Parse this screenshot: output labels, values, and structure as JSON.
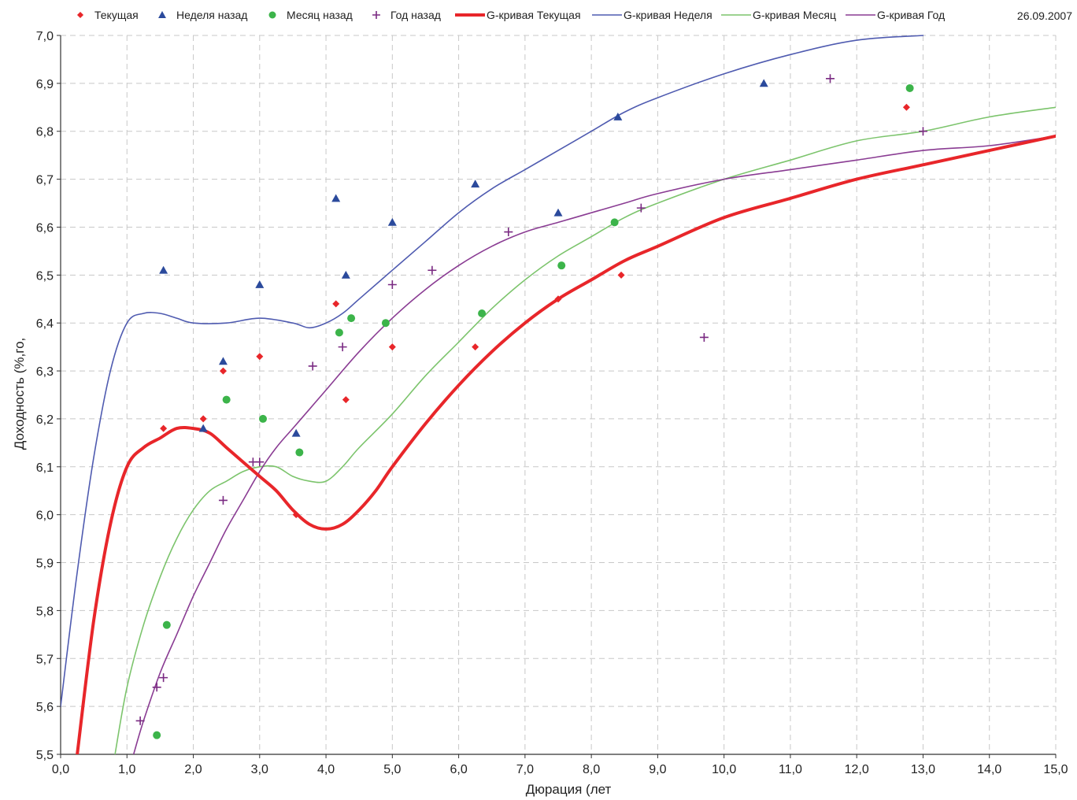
{
  "chart_data": {
    "type": "scatter",
    "date": "26.09.2007",
    "xlabel": "Дюрация (лет",
    "ylabel": "Доходность (%,го,",
    "xlim": [
      0,
      15
    ],
    "ylim": [
      5.5,
      7.0
    ],
    "x_ticks": [
      0,
      1,
      2,
      3,
      4,
      5,
      6,
      7,
      8,
      9,
      10,
      11,
      12,
      13,
      14,
      15
    ],
    "x_tick_labels": [
      "0,0",
      "1,0",
      "2,0",
      "3,0",
      "4,0",
      "5,0",
      "6,0",
      "7,0",
      "8,0",
      "9,0",
      "10,0",
      "11,0",
      "12,0",
      "13,0",
      "14,0",
      "15,0"
    ],
    "y_ticks": [
      5.5,
      5.6,
      5.7,
      5.8,
      5.9,
      6.0,
      6.1,
      6.2,
      6.3,
      6.4,
      6.5,
      6.6,
      6.7,
      6.8,
      6.9,
      7.0
    ],
    "y_tick_labels": [
      "5,5",
      "5,6",
      "5,7",
      "5,8",
      "5,9",
      "6,0",
      "6,1",
      "6,2",
      "6,3",
      "6,4",
      "6,5",
      "6,6",
      "6,7",
      "6,8",
      "6,9",
      "7,0"
    ],
    "grid": true,
    "legend_position": "top",
    "scatter_series": [
      {
        "name": "Текущая",
        "marker": "diamond",
        "color": "#e8262a",
        "points": [
          [
            1.55,
            6.18
          ],
          [
            2.15,
            6.2
          ],
          [
            2.45,
            6.3
          ],
          [
            3.0,
            6.33
          ],
          [
            3.55,
            6.0
          ],
          [
            4.15,
            6.44
          ],
          [
            4.3,
            6.24
          ],
          [
            5.0,
            6.35
          ],
          [
            6.25,
            6.35
          ],
          [
            7.5,
            6.45
          ],
          [
            8.45,
            6.5
          ],
          [
            12.75,
            6.85
          ]
        ]
      },
      {
        "name": "Неделя назад",
        "marker": "triangle",
        "color": "#2b4a9c",
        "points": [
          [
            1.55,
            6.51
          ],
          [
            2.15,
            6.18
          ],
          [
            2.45,
            6.32
          ],
          [
            3.0,
            6.48
          ],
          [
            3.55,
            6.17
          ],
          [
            4.15,
            6.66
          ],
          [
            4.3,
            6.5
          ],
          [
            5.0,
            6.61
          ],
          [
            6.25,
            6.69
          ],
          [
            7.5,
            6.63
          ],
          [
            8.4,
            6.83
          ],
          [
            10.6,
            6.9
          ]
        ]
      },
      {
        "name": "Месяц назад",
        "marker": "circle",
        "color": "#3cb44a",
        "points": [
          [
            1.45,
            5.54
          ],
          [
            1.6,
            5.77
          ],
          [
            2.5,
            6.24
          ],
          [
            3.05,
            6.2
          ],
          [
            3.6,
            6.13
          ],
          [
            4.2,
            6.38
          ],
          [
            4.38,
            6.41
          ],
          [
            4.9,
            6.4
          ],
          [
            6.35,
            6.42
          ],
          [
            7.55,
            6.52
          ],
          [
            8.35,
            6.61
          ],
          [
            12.8,
            6.89
          ]
        ]
      },
      {
        "name": "Год назад",
        "marker": "plus",
        "color": "#7a2a82",
        "points": [
          [
            1.2,
            5.57
          ],
          [
            1.45,
            5.64
          ],
          [
            1.55,
            5.66
          ],
          [
            2.45,
            6.03
          ],
          [
            2.9,
            6.11
          ],
          [
            3.0,
            6.11
          ],
          [
            3.8,
            6.31
          ],
          [
            4.25,
            6.35
          ],
          [
            5.0,
            6.48
          ],
          [
            5.6,
            6.51
          ],
          [
            6.75,
            6.59
          ],
          [
            8.75,
            6.64
          ],
          [
            9.7,
            6.37
          ],
          [
            11.6,
            6.91
          ],
          [
            13.0,
            6.8
          ]
        ]
      }
    ],
    "curve_series": [
      {
        "name": "G-кривая Текущая",
        "color": "#e8262a",
        "width": "thick",
        "points": [
          [
            0.25,
            5.5
          ],
          [
            0.5,
            5.78
          ],
          [
            0.75,
            5.98
          ],
          [
            1.0,
            6.1
          ],
          [
            1.25,
            6.14
          ],
          [
            1.5,
            6.16
          ],
          [
            1.75,
            6.18
          ],
          [
            2.0,
            6.18
          ],
          [
            2.25,
            6.17
          ],
          [
            2.5,
            6.14
          ],
          [
            2.75,
            6.11
          ],
          [
            3.0,
            6.08
          ],
          [
            3.25,
            6.05
          ],
          [
            3.5,
            6.01
          ],
          [
            3.75,
            5.98
          ],
          [
            4.0,
            5.97
          ],
          [
            4.25,
            5.98
          ],
          [
            4.5,
            6.01
          ],
          [
            4.75,
            6.05
          ],
          [
            5.0,
            6.1
          ],
          [
            5.5,
            6.19
          ],
          [
            6.0,
            6.27
          ],
          [
            6.5,
            6.34
          ],
          [
            7.0,
            6.4
          ],
          [
            7.5,
            6.45
          ],
          [
            8.0,
            6.49
          ],
          [
            8.5,
            6.53
          ],
          [
            9.0,
            6.56
          ],
          [
            10.0,
            6.62
          ],
          [
            11.0,
            6.66
          ],
          [
            12.0,
            6.7
          ],
          [
            13.0,
            6.73
          ],
          [
            14.0,
            6.76
          ],
          [
            15.0,
            6.79
          ]
        ]
      },
      {
        "name": "G-кривая Неделя",
        "color": "#4f5bb0",
        "width": "thin",
        "points": [
          [
            0.0,
            5.6
          ],
          [
            0.25,
            5.88
          ],
          [
            0.5,
            6.12
          ],
          [
            0.75,
            6.3
          ],
          [
            1.0,
            6.4
          ],
          [
            1.25,
            6.42
          ],
          [
            1.5,
            6.42
          ],
          [
            1.75,
            6.41
          ],
          [
            2.0,
            6.4
          ],
          [
            2.5,
            6.4
          ],
          [
            3.0,
            6.41
          ],
          [
            3.5,
            6.4
          ],
          [
            3.75,
            6.39
          ],
          [
            4.0,
            6.4
          ],
          [
            4.25,
            6.42
          ],
          [
            4.5,
            6.45
          ],
          [
            5.0,
            6.51
          ],
          [
            5.5,
            6.57
          ],
          [
            6.0,
            6.63
          ],
          [
            6.5,
            6.68
          ],
          [
            7.0,
            6.72
          ],
          [
            7.5,
            6.76
          ],
          [
            8.0,
            6.8
          ],
          [
            8.5,
            6.84
          ],
          [
            9.0,
            6.87
          ],
          [
            10.0,
            6.92
          ],
          [
            11.0,
            6.96
          ],
          [
            12.0,
            6.99
          ],
          [
            13.0,
            7.0
          ]
        ]
      },
      {
        "name": "G-кривая Месяц",
        "color": "#7cc46c",
        "width": "thin",
        "points": [
          [
            0.82,
            5.5
          ],
          [
            1.0,
            5.64
          ],
          [
            1.25,
            5.77
          ],
          [
            1.5,
            5.87
          ],
          [
            1.75,
            5.95
          ],
          [
            2.0,
            6.01
          ],
          [
            2.25,
            6.05
          ],
          [
            2.5,
            6.07
          ],
          [
            2.75,
            6.09
          ],
          [
            3.0,
            6.1
          ],
          [
            3.25,
            6.1
          ],
          [
            3.5,
            6.08
          ],
          [
            3.75,
            6.07
          ],
          [
            4.0,
            6.07
          ],
          [
            4.25,
            6.1
          ],
          [
            4.5,
            6.14
          ],
          [
            5.0,
            6.21
          ],
          [
            5.5,
            6.29
          ],
          [
            6.0,
            6.36
          ],
          [
            6.5,
            6.43
          ],
          [
            7.0,
            6.49
          ],
          [
            7.5,
            6.54
          ],
          [
            8.0,
            6.58
          ],
          [
            8.5,
            6.62
          ],
          [
            9.0,
            6.65
          ],
          [
            10.0,
            6.7
          ],
          [
            11.0,
            6.74
          ],
          [
            12.0,
            6.78
          ],
          [
            13.0,
            6.8
          ],
          [
            14.0,
            6.83
          ],
          [
            15.0,
            6.85
          ]
        ]
      },
      {
        "name": "G-кривая Год",
        "color": "#8a3c93",
        "width": "thin",
        "points": [
          [
            1.1,
            5.5
          ],
          [
            1.25,
            5.57
          ],
          [
            1.5,
            5.67
          ],
          [
            1.75,
            5.75
          ],
          [
            2.0,
            5.83
          ],
          [
            2.25,
            5.9
          ],
          [
            2.5,
            5.97
          ],
          [
            2.75,
            6.03
          ],
          [
            3.0,
            6.09
          ],
          [
            3.25,
            6.14
          ],
          [
            3.5,
            6.18
          ],
          [
            3.75,
            6.22
          ],
          [
            4.0,
            6.26
          ],
          [
            4.5,
            6.34
          ],
          [
            5.0,
            6.41
          ],
          [
            5.5,
            6.47
          ],
          [
            6.0,
            6.52
          ],
          [
            6.5,
            6.56
          ],
          [
            7.0,
            6.59
          ],
          [
            7.5,
            6.61
          ],
          [
            8.0,
            6.63
          ],
          [
            8.5,
            6.65
          ],
          [
            9.0,
            6.67
          ],
          [
            10.0,
            6.7
          ],
          [
            11.0,
            6.72
          ],
          [
            12.0,
            6.74
          ],
          [
            13.0,
            6.76
          ],
          [
            14.0,
            6.77
          ],
          [
            15.0,
            6.79
          ]
        ]
      }
    ]
  }
}
